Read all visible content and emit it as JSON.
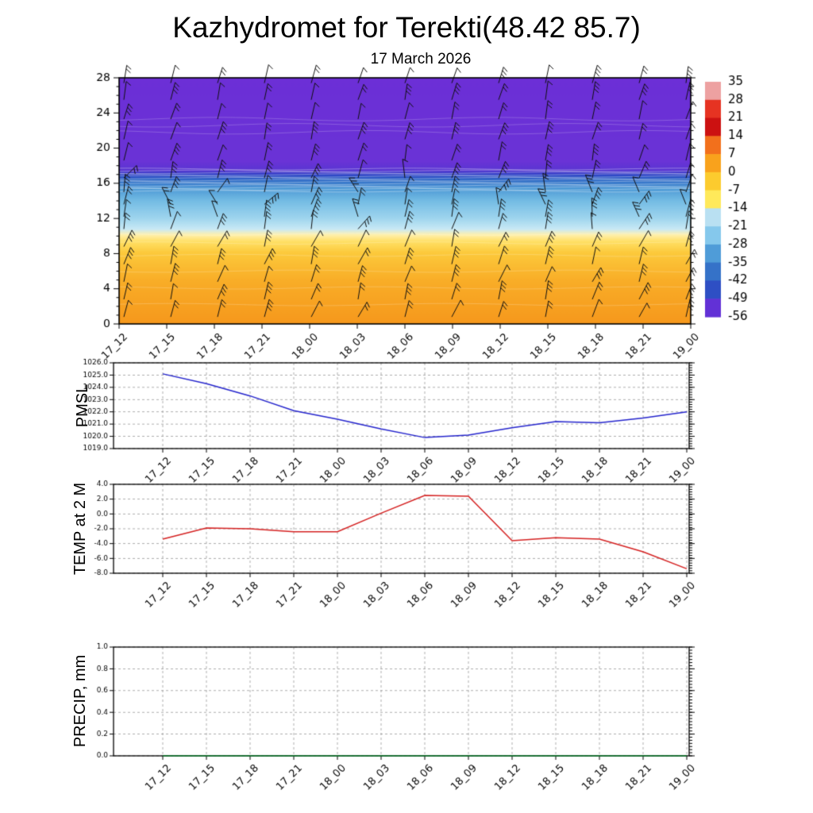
{
  "page": {
    "title": "Kazhydromet for Terekti(48.42 85.7)",
    "subtitle": "17 March 2026"
  },
  "times": [
    "17_12",
    "17_15",
    "17_18",
    "17_21",
    "18_00",
    "18_03",
    "18_06",
    "18_09",
    "18_12",
    "18_15",
    "18_18",
    "18_21",
    "19_00"
  ],
  "chart_data": [
    {
      "type": "heatmap",
      "name": "temperature-height-profile",
      "title": "17 March 2026",
      "x": [
        "17_12",
        "17_15",
        "17_18",
        "17_21",
        "18_00",
        "18_03",
        "18_06",
        "18_09",
        "18_12",
        "18_15",
        "18_18",
        "18_21",
        "19_00"
      ],
      "ylim": [
        0,
        28
      ],
      "yticks": [
        0,
        4,
        8,
        12,
        16,
        20,
        24,
        28
      ],
      "grid": false,
      "overlay": "wind-barbs",
      "legend_position": "right-colorbar",
      "colorbar": {
        "labels": [
          35,
          28,
          21,
          14,
          7,
          0,
          -7,
          -14,
          -21,
          -28,
          -35,
          -42,
          -49,
          -56
        ],
        "colors": [
          "#eda1a1",
          "#e63322",
          "#cc1111",
          "#f2701c",
          "#f9a21c",
          "#fccb2e",
          "#ffe95a",
          "#b9e0f2",
          "#85c8ec",
          "#4f9cd8",
          "#3572c8",
          "#2e4fc4",
          "#6231d6"
        ]
      },
      "gradient_stops": [
        {
          "frac": 0.0,
          "color": "#f6981c"
        },
        {
          "frac": 0.18,
          "color": "#f9ae28"
        },
        {
          "frac": 0.29,
          "color": "#fcca3c"
        },
        {
          "frac": 0.335,
          "color": "#ffe066"
        },
        {
          "frac": 0.362,
          "color": "#fff0ac"
        },
        {
          "frac": 0.385,
          "color": "#c9e9f5"
        },
        {
          "frac": 0.43,
          "color": "#9ed5ee"
        },
        {
          "frac": 0.5,
          "color": "#74bce4"
        },
        {
          "frac": 0.55,
          "color": "#4e9ad6"
        },
        {
          "frac": 0.585,
          "color": "#2f6ac6"
        },
        {
          "frac": 0.605,
          "color": "#2f46c6"
        },
        {
          "frac": 0.625,
          "color": "#5a35d2"
        },
        {
          "frac": 0.66,
          "color": "#6a33d6"
        },
        {
          "frac": 1.0,
          "color": "#6c2fd6"
        }
      ]
    },
    {
      "type": "line",
      "ylabel": "PMSL",
      "ylim": [
        1019.0,
        1026.0
      ],
      "yticks": [
        "1026.0",
        "1025.0",
        "1024.0",
        "1023.0",
        "1022.0",
        "1021.0",
        "1020.0",
        "1019.0"
      ],
      "grid": "dashed",
      "series": [
        {
          "name": "PMSL",
          "color": "#2424cc",
          "values": [
            1025.1,
            1024.3,
            1023.3,
            1022.1,
            1021.4,
            1020.6,
            1019.9,
            1020.1,
            1020.7,
            1021.2,
            1021.1,
            1021.5,
            1022.0
          ]
        }
      ]
    },
    {
      "type": "line",
      "ylabel": "TEMP at 2 M",
      "ylim": [
        -8.0,
        4.0
      ],
      "yticks": [
        "4.0",
        "2.0",
        "0.0",
        "-2.0",
        "-4.0",
        "-6.0",
        "-8.0"
      ],
      "grid": "dashed",
      "series": [
        {
          "name": "TEMP at 2 M",
          "color": "#d42020",
          "values": [
            -3.4,
            -1.9,
            -2.0,
            -2.4,
            -2.4,
            0.1,
            2.5,
            2.4,
            -3.6,
            -3.2,
            -3.4,
            -5.1,
            -7.4
          ]
        }
      ]
    },
    {
      "type": "line",
      "ylabel": "PRECIP, mm",
      "ylim": [
        0.0,
        1.0
      ],
      "yticks": [
        "1.0",
        "0.8",
        "0.6",
        "0.4",
        "0.2",
        "0.0"
      ],
      "grid": "dashed",
      "series": [
        {
          "name": "PRECIP",
          "color": "#0a7a2a",
          "values": [
            0,
            0,
            0,
            0,
            0,
            0,
            0,
            0,
            0,
            0,
            0,
            0,
            0
          ]
        }
      ]
    }
  ]
}
